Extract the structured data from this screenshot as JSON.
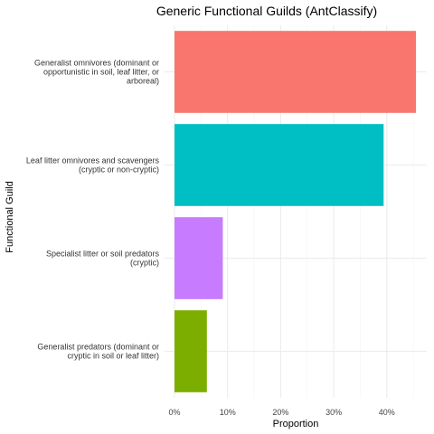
{
  "chart_data": {
    "type": "bar",
    "orientation": "horizontal",
    "title": "Generic Functional Guilds (AntClassify)",
    "xlabel": "Proportion",
    "ylabel": "Functional Guild",
    "categories": [
      {
        "name": "Generalist omnivores (dominant or opportunistic in soil, leaf litter, or arboreal)",
        "lines": [
          "Generalist omnivores (dominant or",
          "opportunistic in soil, leaf litter, or",
          "arboreal)"
        ]
      },
      {
        "name": "Leaf litter omnivores and scavengers (cryptic or non-cryptic)",
        "lines": [
          "Leaf litter omnivores and scavengers",
          "(cryptic or non-cryptic)"
        ]
      },
      {
        "name": "Specialist litter or soil predators (cryptic)",
        "lines": [
          "Specialist litter or soil predators",
          "(cryptic)"
        ]
      },
      {
        "name": "Generalist predators (dominant or cryptic in soil or leaf litter)",
        "lines": [
          "Generalist predators (dominant or",
          "cryptic in soil or leaf litter)"
        ]
      }
    ],
    "values": [
      0.455,
      0.394,
      0.091,
      0.061
    ],
    "colors": [
      "#F8766D",
      "#00BFC4",
      "#C77CFF",
      "#7CAE00"
    ],
    "xlim": [
      0,
      0.47
    ],
    "x_ticks": [
      0,
      0.1,
      0.2,
      0.3,
      0.4
    ],
    "x_tick_labels": [
      "0%",
      "10%",
      "20%",
      "30%",
      "40%"
    ],
    "grid": true,
    "legend": "none"
  }
}
